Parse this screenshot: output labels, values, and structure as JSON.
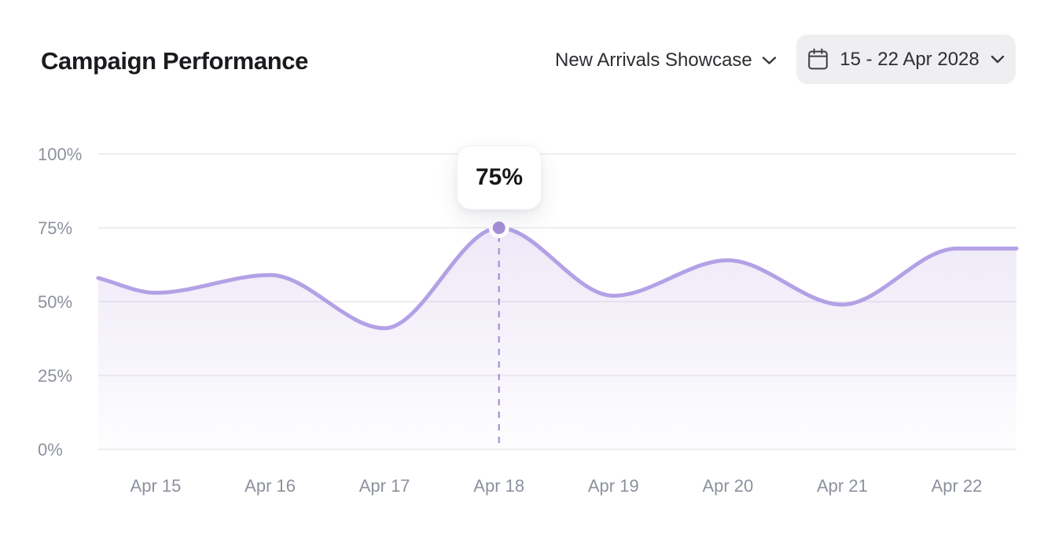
{
  "header": {
    "title": "Campaign Performance",
    "campaign_selector": {
      "label": "New Arrivals Showcase",
      "icon": "chevron-down-icon"
    },
    "date_range": {
      "label": "15 - 22 Apr 2028",
      "icon": "calendar-icon"
    }
  },
  "chart_data": {
    "type": "area",
    "title": "Campaign Performance",
    "categories": [
      "Apr 15",
      "Apr 16",
      "Apr 17",
      "Apr 18",
      "Apr 19",
      "Apr 20",
      "Apr 21",
      "Apr 22"
    ],
    "values": [
      53,
      59,
      41,
      75,
      52,
      64,
      49,
      68
    ],
    "left_edge_value": 58,
    "right_edge_value": 68,
    "unit": "%",
    "xlabel": "",
    "ylabel": "",
    "ylim": [
      0,
      100
    ],
    "yticks": [
      0,
      25,
      50,
      75,
      100
    ],
    "ytick_labels": [
      "0%",
      "25%",
      "50%",
      "75%",
      "100%"
    ],
    "grid": true,
    "legend": false,
    "highlight": {
      "category": "Apr 18",
      "value": 75,
      "label": "75%"
    },
    "colors": {
      "accent": "#a78fd9",
      "line": "#b3a1e6",
      "fill_top": "rgba(167,143,217,0.20)",
      "fill_bottom": "rgba(167,143,217,0.02)",
      "grid": "#e9e9ed",
      "axis_text": "#8c919d",
      "title_text": "#1b1b1f",
      "control_text": "#2e2e33",
      "button_bg": "#efeff1",
      "tooltip_text": "#17171a"
    }
  }
}
